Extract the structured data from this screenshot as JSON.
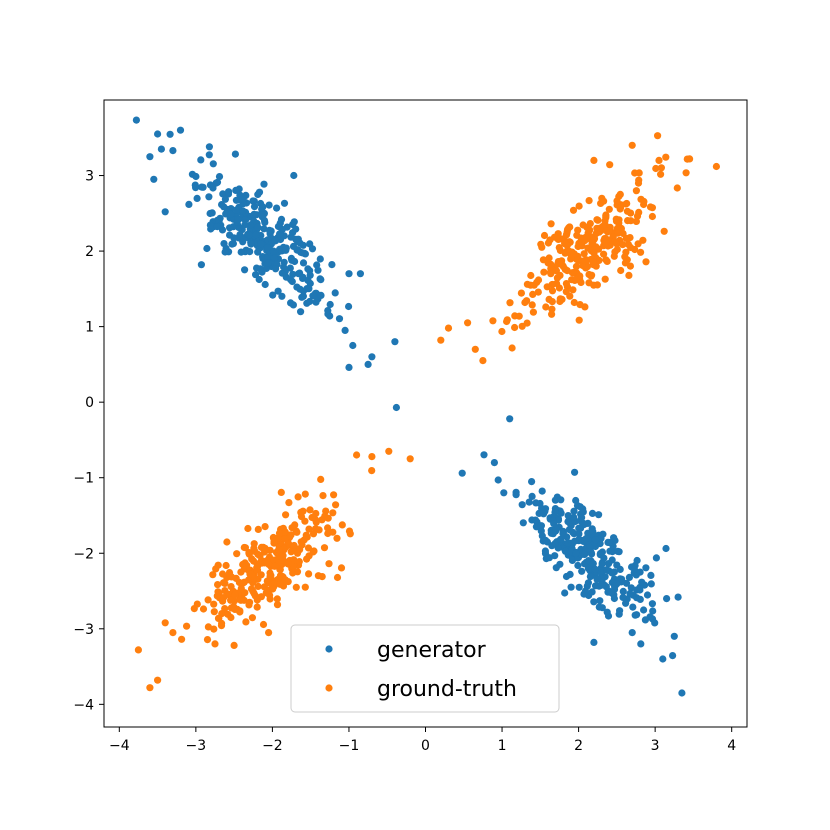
{
  "chart_data": {
    "type": "scatter",
    "title": "",
    "xlabel": "",
    "ylabel": "",
    "xlim": [
      -4.2,
      4.2
    ],
    "ylim": [
      -4.3,
      4.0
    ],
    "grid": false,
    "legend_position": "bottom-center",
    "x_ticks": [
      -4,
      -3,
      -2,
      -1,
      0,
      1,
      2,
      3,
      4
    ],
    "x_tick_labels": [
      "−4",
      "−3",
      "−2",
      "−1",
      "0",
      "1",
      "2",
      "3",
      "4"
    ],
    "y_ticks": [
      -4,
      -3,
      -2,
      -1,
      0,
      1,
      2,
      3
    ],
    "y_tick_labels": [
      "−4",
      "−3",
      "−2",
      "−1",
      "0",
      "1",
      "2",
      "3"
    ],
    "series": [
      {
        "name": "generator",
        "color": "#1f77b4",
        "clusters": [
          {
            "center": [
              -2.1,
              2.1
            ],
            "spread": [
              0.42,
              0.42
            ],
            "correlation": -0.72,
            "count": 290
          },
          {
            "center": [
              2.1,
              -2.0
            ],
            "spread": [
              0.42,
              0.42
            ],
            "correlation": -0.72,
            "count": 290
          }
        ],
        "points": [
          [
            -3.5,
            3.55
          ],
          [
            -3.2,
            3.6
          ],
          [
            -3.6,
            3.25
          ],
          [
            -3.45,
            3.35
          ],
          [
            -3.3,
            3.33
          ],
          [
            -3.55,
            2.95
          ],
          [
            -3.4,
            2.52
          ],
          [
            -1.72,
            3.0
          ],
          [
            -1.0,
            1.7
          ],
          [
            -0.85,
            1.7
          ],
          [
            -1.05,
            0.95
          ],
          [
            -0.95,
            0.75
          ],
          [
            -0.7,
            0.6
          ],
          [
            -0.75,
            0.5
          ],
          [
            -1.0,
            0.46
          ],
          [
            -0.4,
            0.8
          ],
          [
            -0.38,
            -0.07
          ],
          [
            1.1,
            -0.22
          ],
          [
            0.48,
            -0.94
          ],
          [
            0.9,
            -0.8
          ],
          [
            0.95,
            -1.03
          ],
          [
            3.15,
            -2.6
          ],
          [
            3.3,
            -2.58
          ],
          [
            3.25,
            -3.1
          ],
          [
            3.1,
            -3.4
          ],
          [
            3.35,
            -3.85
          ],
          [
            2.2,
            -3.18
          ],
          [
            2.7,
            -3.05
          ]
        ]
      },
      {
        "name": "ground-truth",
        "color": "#ff7f0e",
        "clusters": [
          {
            "center": [
              2.1,
              2.0
            ],
            "spread": [
              0.42,
              0.42
            ],
            "correlation": 0.72,
            "count": 290
          },
          {
            "center": [
              -2.0,
              -2.1
            ],
            "spread": [
              0.42,
              0.42
            ],
            "correlation": 0.72,
            "count": 290
          }
        ],
        "points": [
          [
            2.7,
            3.4
          ],
          [
            3.45,
            3.22
          ],
          [
            3.8,
            3.12
          ],
          [
            3.05,
            3.2
          ],
          [
            2.2,
            3.2
          ],
          [
            0.2,
            0.82
          ],
          [
            0.3,
            0.98
          ],
          [
            0.55,
            1.05
          ],
          [
            0.65,
            0.7
          ],
          [
            0.75,
            0.55
          ],
          [
            -0.48,
            -0.65
          ],
          [
            -0.2,
            -0.75
          ],
          [
            -0.7,
            -0.72
          ],
          [
            -0.9,
            -0.7
          ],
          [
            -3.75,
            -3.28
          ],
          [
            -3.6,
            -3.78
          ],
          [
            -3.5,
            -3.68
          ],
          [
            -3.4,
            -2.92
          ],
          [
            -3.3,
            -3.05
          ],
          [
            -2.5,
            -3.22
          ],
          [
            -2.05,
            -3.05
          ],
          [
            -2.75,
            -3.2
          ]
        ]
      }
    ]
  }
}
